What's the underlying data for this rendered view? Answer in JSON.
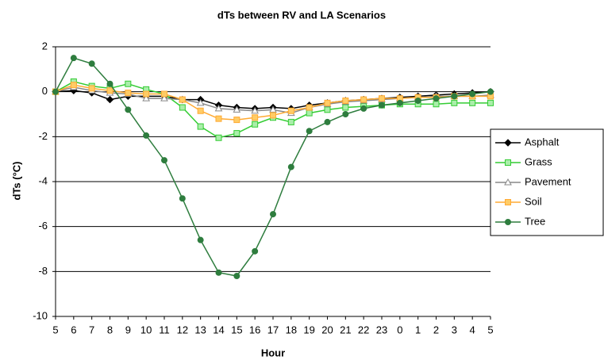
{
  "chart_data": {
    "type": "line",
    "title": "dTs between RV and LA Scenarios",
    "x_label": "Hour",
    "y_label": "dTs (°C)",
    "categories": [
      "5",
      "6",
      "7",
      "8",
      "9",
      "10",
      "11",
      "12",
      "13",
      "14",
      "15",
      "16",
      "17",
      "18",
      "19",
      "20",
      "21",
      "22",
      "23",
      "0",
      "1",
      "2",
      "3",
      "4",
      "5"
    ],
    "ylim": [
      -10,
      2
    ],
    "yticks": [
      -10,
      -8,
      -6,
      -4,
      -2,
      0,
      2
    ],
    "grid": true,
    "legend": "right",
    "series": [
      {
        "name": "Asphalt",
        "color": "#000000",
        "marker": "diamond",
        "values": [
          0,
          0.05,
          -0.05,
          -0.35,
          -0.2,
          -0.2,
          -0.2,
          -0.35,
          -0.35,
          -0.6,
          -0.7,
          -0.75,
          -0.7,
          -0.75,
          -0.6,
          -0.5,
          -0.4,
          -0.35,
          -0.3,
          -0.25,
          -0.2,
          -0.15,
          -0.1,
          -0.05,
          0
        ]
      },
      {
        "name": "Grass",
        "color": "#33cc33",
        "marker": "square",
        "values": [
          0,
          0.45,
          0.25,
          0.15,
          0.35,
          0.1,
          -0.1,
          -0.7,
          -1.55,
          -2.05,
          -1.85,
          -1.45,
          -1.15,
          -1.35,
          -0.95,
          -0.8,
          -0.7,
          -0.65,
          -0.6,
          -0.55,
          -0.55,
          -0.55,
          -0.5,
          -0.5,
          -0.5
        ]
      },
      {
        "name": "Pavement",
        "color": "#888888",
        "marker": "triangle",
        "values": [
          0,
          0.2,
          0.05,
          -0.05,
          -0.1,
          -0.3,
          -0.3,
          -0.35,
          -0.5,
          -0.75,
          -0.8,
          -0.85,
          -0.8,
          -0.95,
          -0.7,
          -0.55,
          -0.45,
          -0.4,
          -0.35,
          -0.3,
          -0.25,
          -0.2,
          -0.2,
          -0.2,
          -0.15
        ]
      },
      {
        "name": "Soil",
        "color": "#ffaa33",
        "marker": "square",
        "values": [
          0,
          0.3,
          0.15,
          0.05,
          -0.05,
          -0.1,
          -0.1,
          -0.35,
          -0.85,
          -1.2,
          -1.25,
          -1.15,
          -1.05,
          -0.85,
          -0.7,
          -0.5,
          -0.4,
          -0.35,
          -0.3,
          -0.3,
          -0.25,
          -0.25,
          -0.2,
          -0.2,
          -0.2
        ]
      },
      {
        "name": "Tree",
        "color": "#2e7d3e",
        "marker": "circle",
        "values": [
          0,
          1.5,
          1.25,
          0.35,
          -0.8,
          -1.95,
          -3.05,
          -4.75,
          -6.6,
          -8.05,
          -8.2,
          -7.1,
          -5.45,
          -3.35,
          -1.75,
          -1.35,
          -1.0,
          -0.75,
          -0.6,
          -0.5,
          -0.4,
          -0.3,
          -0.2,
          -0.1,
          0
        ]
      }
    ]
  }
}
